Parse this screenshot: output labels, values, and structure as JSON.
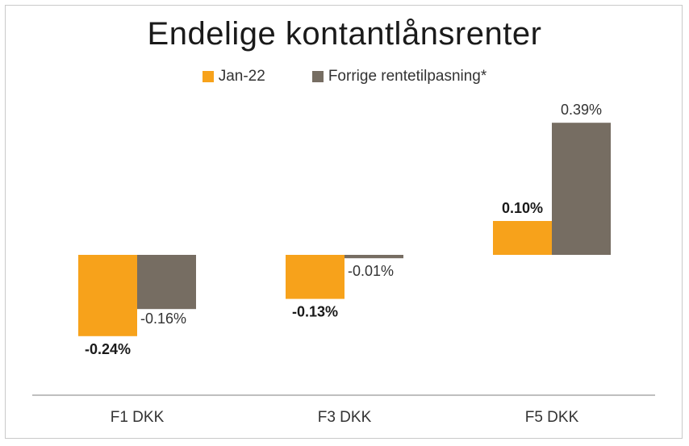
{
  "chart_data": {
    "type": "bar",
    "title": "Endelige kontantlånsrenter",
    "categories": [
      "F1 DKK",
      "F3 DKK",
      "F5 DKK"
    ],
    "series": [
      {
        "name": "Jan-22",
        "values": [
          -0.24,
          -0.13,
          0.1
        ],
        "labels": [
          "-0.24%",
          "-0.13%",
          "0.10%"
        ],
        "color": "#f7a21b"
      },
      {
        "name": "Forrige rentetilpasning*",
        "values": [
          -0.16,
          -0.01,
          0.39
        ],
        "labels": [
          "-0.16%",
          "-0.01%",
          "0.39%"
        ],
        "color": "#766d62"
      }
    ],
    "ylim": [
      -0.31,
      0.41
    ],
    "grid": false,
    "legend_position": "top"
  }
}
